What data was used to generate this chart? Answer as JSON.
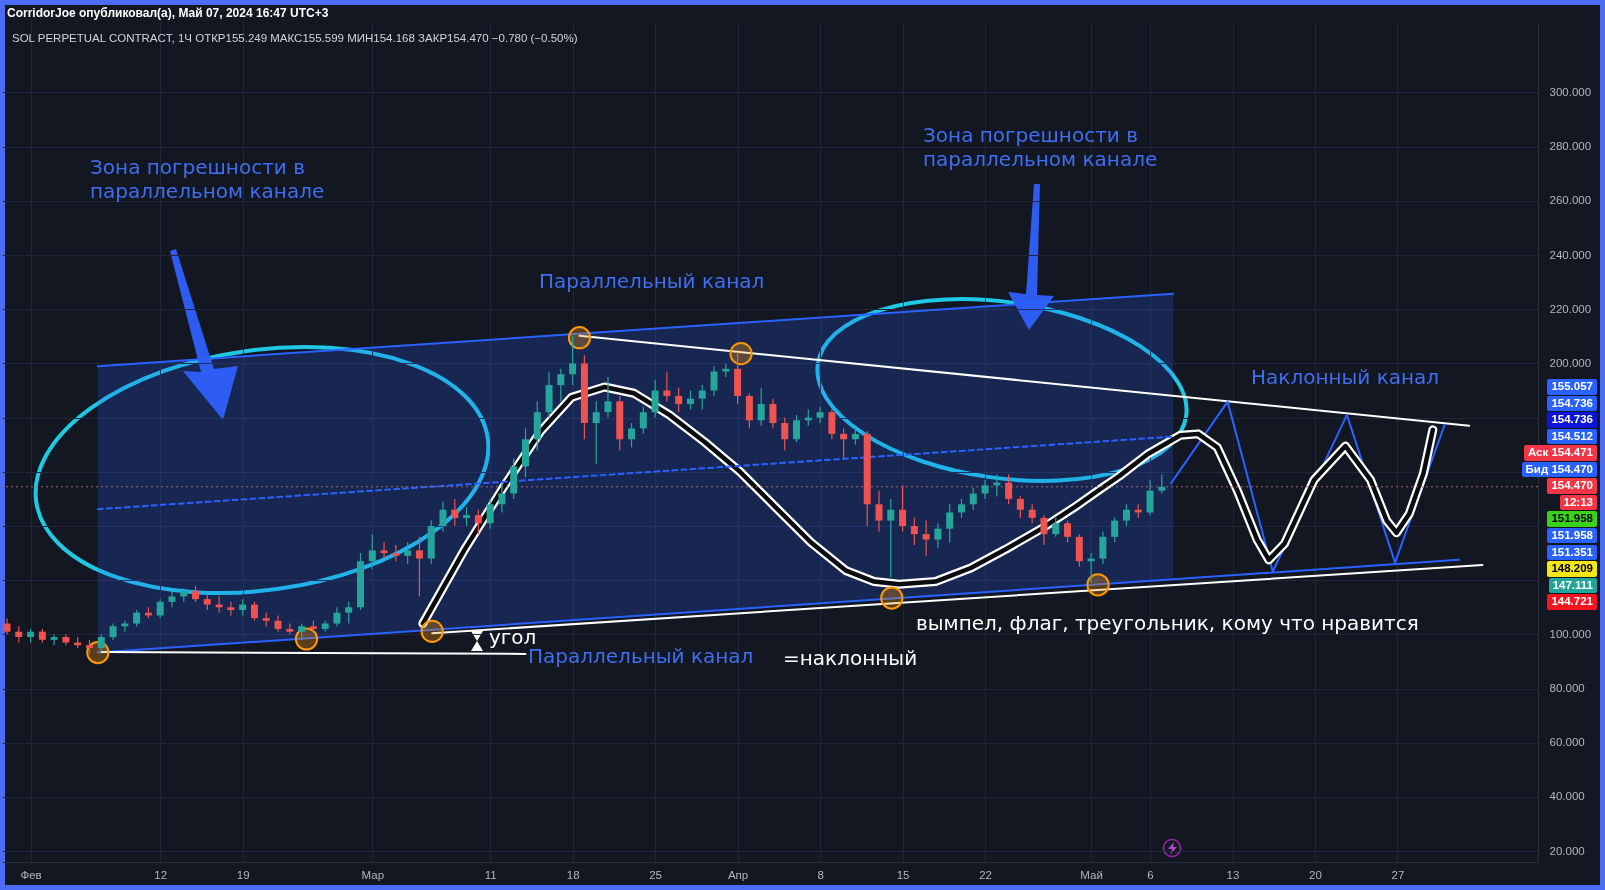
{
  "chart_data": {
    "type": "candlestick",
    "title": "SOL PERPETUAL CONTRACT, 1Ч ОТКР155.249 МАКС155.599 МИН154.168 ЗАКР154.470 −0.780 (−0.50%)",
    "subtitle": "CorridorJoe опубликовал(а), Май 07, 2024 16:47 UTC+3",
    "x": [
      "2024-01-30",
      "2024-01-31",
      "2024-02-01",
      "2024-02-02",
      "2024-02-03",
      "2024-02-04",
      "2024-02-05",
      "2024-02-06",
      "2024-02-07",
      "2024-02-08",
      "2024-02-09",
      "2024-02-10",
      "2024-02-11",
      "2024-02-12",
      "2024-02-13",
      "2024-02-14",
      "2024-02-15",
      "2024-02-16",
      "2024-02-17",
      "2024-02-18",
      "2024-02-19",
      "2024-02-20",
      "2024-02-21",
      "2024-02-22",
      "2024-02-23",
      "2024-02-24",
      "2024-02-25",
      "2024-02-26",
      "2024-02-27",
      "2024-02-28",
      "2024-02-29",
      "2024-03-01",
      "2024-03-02",
      "2024-03-03",
      "2024-03-04",
      "2024-03-05",
      "2024-03-06",
      "2024-03-07",
      "2024-03-08",
      "2024-03-09",
      "2024-03-10",
      "2024-03-11",
      "2024-03-12",
      "2024-03-13",
      "2024-03-14",
      "2024-03-15",
      "2024-03-16",
      "2024-03-17",
      "2024-03-18",
      "2024-03-19",
      "2024-03-20",
      "2024-03-21",
      "2024-03-22",
      "2024-03-23",
      "2024-03-24",
      "2024-03-25",
      "2024-03-26",
      "2024-03-27",
      "2024-03-28",
      "2024-03-29",
      "2024-03-30",
      "2024-03-31",
      "2024-04-01",
      "2024-04-02",
      "2024-04-03",
      "2024-04-04",
      "2024-04-05",
      "2024-04-06",
      "2024-04-07",
      "2024-04-08",
      "2024-04-09",
      "2024-04-10",
      "2024-04-11",
      "2024-04-12",
      "2024-04-13",
      "2024-04-14",
      "2024-04-15",
      "2024-04-16",
      "2024-04-17",
      "2024-04-18",
      "2024-04-19",
      "2024-04-20",
      "2024-04-21",
      "2024-04-22",
      "2024-04-23",
      "2024-04-24",
      "2024-04-25",
      "2024-04-26",
      "2024-04-27",
      "2024-04-28",
      "2024-04-29",
      "2024-04-30",
      "2024-05-01",
      "2024-05-02",
      "2024-05-03",
      "2024-05-04",
      "2024-05-05",
      "2024-05-06",
      "2024-05-07"
    ],
    "ohlc": [
      [
        104,
        106,
        100,
        101
      ],
      [
        101,
        103,
        97,
        99
      ],
      [
        99,
        102,
        97,
        101
      ],
      [
        101,
        102,
        97,
        98
      ],
      [
        98,
        100,
        96,
        99
      ],
      [
        99,
        100,
        96,
        97
      ],
      [
        97,
        99,
        95,
        96
      ],
      [
        96,
        98,
        93,
        95
      ],
      [
        95,
        100,
        94,
        99
      ],
      [
        99,
        104,
        98,
        103
      ],
      [
        103,
        105,
        101,
        104
      ],
      [
        104,
        109,
        103,
        108
      ],
      [
        108,
        110,
        106,
        107
      ],
      [
        107,
        113,
        106,
        112
      ],
      [
        112,
        116,
        110,
        114
      ],
      [
        114,
        117,
        112,
        116
      ],
      [
        116,
        118,
        112,
        113
      ],
      [
        113,
        115,
        109,
        111
      ],
      [
        111,
        114,
        108,
        110
      ],
      [
        110,
        112,
        107,
        109
      ],
      [
        109,
        113,
        107,
        111
      ],
      [
        111,
        112,
        105,
        106
      ],
      [
        106,
        108,
        103,
        105
      ],
      [
        105,
        107,
        101,
        102
      ],
      [
        102,
        104,
        100,
        101
      ],
      [
        101,
        104,
        98,
        103
      ],
      [
        103,
        105,
        101,
        102
      ],
      [
        102,
        105,
        101,
        104
      ],
      [
        104,
        110,
        103,
        108
      ],
      [
        108,
        112,
        104,
        110
      ],
      [
        110,
        130,
        109,
        127
      ],
      [
        127,
        137,
        124,
        131
      ],
      [
        131,
        134,
        128,
        130
      ],
      [
        130,
        133,
        127,
        129
      ],
      [
        129,
        134,
        126,
        131
      ],
      [
        131,
        136,
        114,
        128
      ],
      [
        128,
        142,
        126,
        140
      ],
      [
        140,
        149,
        138,
        146
      ],
      [
        146,
        150,
        140,
        143
      ],
      [
        143,
        147,
        140,
        144
      ],
      [
        144,
        146,
        137,
        141
      ],
      [
        141,
        150,
        139,
        148
      ],
      [
        148,
        156,
        145,
        152
      ],
      [
        152,
        165,
        150,
        162
      ],
      [
        162,
        176,
        158,
        172
      ],
      [
        172,
        186,
        168,
        182
      ],
      [
        182,
        197,
        180,
        192
      ],
      [
        192,
        198,
        186,
        196
      ],
      [
        196,
        210,
        192,
        200
      ],
      [
        200,
        203,
        172,
        178
      ],
      [
        178,
        186,
        163,
        182
      ],
      [
        182,
        195,
        180,
        186
      ],
      [
        186,
        188,
        168,
        172
      ],
      [
        172,
        178,
        169,
        176
      ],
      [
        176,
        184,
        174,
        182
      ],
      [
        182,
        194,
        180,
        190
      ],
      [
        190,
        197,
        186,
        188
      ],
      [
        188,
        191,
        182,
        185
      ],
      [
        185,
        190,
        183,
        187
      ],
      [
        187,
        192,
        183,
        190
      ],
      [
        190,
        199,
        188,
        197
      ],
      [
        197,
        200,
        195,
        198
      ],
      [
        198,
        204,
        185,
        188
      ],
      [
        188,
        189,
        176,
        179
      ],
      [
        179,
        191,
        177,
        185
      ],
      [
        185,
        187,
        176,
        178
      ],
      [
        178,
        180,
        168,
        172
      ],
      [
        172,
        181,
        171,
        179
      ],
      [
        179,
        183,
        177,
        180
      ],
      [
        180,
        184,
        178,
        182
      ],
      [
        182,
        183,
        172,
        174
      ],
      [
        174,
        176,
        165,
        172
      ],
      [
        172,
        176,
        170,
        174
      ],
      [
        174,
        175,
        140,
        148
      ],
      [
        148,
        153,
        138,
        142
      ],
      [
        142,
        150,
        121,
        146
      ],
      [
        146,
        155,
        138,
        140
      ],
      [
        140,
        143,
        133,
        137
      ],
      [
        137,
        142,
        129,
        135
      ],
      [
        135,
        141,
        132,
        139
      ],
      [
        139,
        148,
        134,
        145
      ],
      [
        145,
        150,
        143,
        148
      ],
      [
        148,
        154,
        146,
        152
      ],
      [
        152,
        157,
        150,
        155
      ],
      [
        155,
        159,
        151,
        156
      ],
      [
        156,
        159,
        148,
        150
      ],
      [
        150,
        151,
        143,
        146
      ],
      [
        146,
        148,
        141,
        143
      ],
      [
        143,
        144,
        133,
        137
      ],
      [
        137,
        143,
        136,
        141
      ],
      [
        141,
        142,
        134,
        136
      ],
      [
        136,
        137,
        125,
        127
      ],
      [
        127,
        130,
        119,
        128
      ],
      [
        128,
        138,
        126,
        136
      ],
      [
        136,
        143,
        134,
        142
      ],
      [
        142,
        148,
        140,
        146
      ],
      [
        146,
        148,
        143,
        145
      ],
      [
        145,
        157,
        144,
        153
      ],
      [
        153,
        159,
        152,
        154.47
      ]
    ],
    "colors": [
      "#ef5350",
      "#ef5350",
      "#26a69a",
      "#ef5350",
      "#26a69a",
      "#ef5350",
      "#ef5350",
      "#ef5350",
      "#26a69a",
      "#26a69a",
      "#26a69a",
      "#26a69a",
      "#ef5350",
      "#26a69a",
      "#26a69a",
      "#26a69a",
      "#ef5350",
      "#ef5350",
      "#ef5350",
      "#ef5350",
      "#26a69a",
      "#ef5350",
      "#ef5350",
      "#ef5350",
      "#ef5350",
      "#26a69a",
      "#ef5350",
      "#26a69a",
      "#26a69a",
      "#26a69a",
      "#26a69a",
      "#26a69a",
      "#ef5350",
      "#ef5350",
      "#26a69a",
      "#ef5350",
      "#26a69a",
      "#26a69a",
      "#ef5350",
      "#26a69a",
      "#ef5350",
      "#26a69a",
      "#26a69a",
      "#26a69a",
      "#26a69a",
      "#26a69a",
      "#26a69a",
      "#26a69a",
      "#26a69a",
      "#ef5350",
      "#26a69a",
      "#26a69a",
      "#ef5350",
      "#26a69a",
      "#26a69a",
      "#26a69a",
      "#ef5350",
      "#ef5350",
      "#26a69a",
      "#26a69a",
      "#26a69a",
      "#26a69a",
      "#ef5350",
      "#ef5350",
      "#26a69a",
      "#ef5350",
      "#ef5350",
      "#26a69a",
      "#26a69a",
      "#26a69a",
      "#ef5350",
      "#ef5350",
      "#26a69a",
      "#ef5350",
      "#ef5350",
      "#26a69a",
      "#ef5350",
      "#ef5350",
      "#ef5350",
      "#26a69a",
      "#26a69a",
      "#26a69a",
      "#26a69a",
      "#26a69a",
      "#26a69a",
      "#ef5350",
      "#ef5350",
      "#ef5350",
      "#ef5350",
      "#26a69a",
      "#ef5350",
      "#ef5350",
      "#26a69a",
      "#26a69a",
      "#26a69a",
      "#26a69a",
      "#ef5350",
      "#26a69a",
      "#26a69a"
    ],
    "xlim": [
      "2024-01-30T00:00",
      "2024-06-07T12:00"
    ],
    "xticks": [
      {
        "value": "2024-02-01",
        "label": "Фев"
      },
      {
        "value": "2024-02-12",
        "label": "12"
      },
      {
        "value": "2024-02-19",
        "label": "19"
      },
      {
        "value": "2024-03-01",
        "label": "Мар"
      },
      {
        "value": "2024-03-11",
        "label": "11"
      },
      {
        "value": "2024-03-18",
        "label": "18"
      },
      {
        "value": "2024-03-25",
        "label": "25"
      },
      {
        "value": "2024-04-01",
        "label": "Апр"
      },
      {
        "value": "2024-04-08",
        "label": "8"
      },
      {
        "value": "2024-04-15",
        "label": "15"
      },
      {
        "value": "2024-04-22",
        "label": "22"
      },
      {
        "value": "2024-05-01",
        "label": "Май"
      },
      {
        "value": "2024-05-06",
        "label": "6"
      },
      {
        "value": "2024-05-13",
        "label": "13"
      },
      {
        "value": "2024-05-20",
        "label": "20"
      },
      {
        "value": "2024-05-27",
        "label": "27"
      }
    ],
    "ylim": [
      16,
      326
    ],
    "yticks": [
      {
        "value": 20,
        "label": "20.000"
      },
      {
        "value": 40,
        "label": "40.000"
      },
      {
        "value": 60,
        "label": "60.000"
      },
      {
        "value": 80,
        "label": "80.000"
      },
      {
        "value": 100,
        "label": "100.000"
      },
      {
        "value": 120,
        "label": null
      },
      {
        "value": 140,
        "label": null
      },
      {
        "value": 160,
        "label": null
      },
      {
        "value": 180,
        "label": null
      },
      {
        "value": 200,
        "label": "200.000"
      },
      {
        "value": 220,
        "label": "220.000"
      },
      {
        "value": 240,
        "label": "240.000"
      },
      {
        "value": 260,
        "label": "260.000"
      },
      {
        "value": 280,
        "label": "280.000"
      },
      {
        "value": 300,
        "label": "300.000"
      }
    ],
    "grid": true,
    "series": [
      {
        "type": "line",
        "color": "#2962ff",
        "x": [
          "2024-02-06T17:00",
          "2024-05-07T23:00"
        ],
        "values": [
          199.0,
          225.7
        ]
      },
      {
        "type": "line",
        "color": "#2962ff",
        "x": [
          "2024-02-06T17:00",
          "2024-06-01T05:00"
        ],
        "values": [
          93.3,
          127.5
        ]
      },
      {
        "type": "line",
        "color": "#ffffff",
        "x": [
          "2024-03-18T14:00",
          "2024-06-02T02:00"
        ],
        "values": [
          210.2,
          177.0
        ]
      },
      {
        "type": "line",
        "color": "#ffffff",
        "x": [
          "2024-02-07T01:00",
          "2024-03-14T00:00"
        ],
        "values": [
          93.5,
          92.8
        ]
      },
      {
        "type": "line",
        "color": "#ffffff",
        "x": [
          "2024-03-06T02:00",
          "2024-06-03T05:00"
        ],
        "values": [
          100.4,
          125.6
        ]
      },
      {
        "type": "line",
        "color": "#2962ff",
        "x": [
          "2024-05-07T19:00",
          "2024-05-12T14:00",
          "2024-05-16T10:00",
          "2024-05-22T17:00",
          "2024-05-26T19:00",
          "2024-05-31T00:00"
        ],
        "values": [
          155.8,
          185.9,
          123.2,
          181.0,
          126.5,
          177.3
        ]
      },
      {
        "type": "line",
        "color": "#ffffff",
        "x": [
          "2024-03-05T07:00",
          "2024-03-08T19:00",
          "2024-03-12T02:00",
          "2024-03-15T07:00",
          "2024-03-17T22:00",
          "2024-03-20T17:00",
          "2024-03-23T05:00",
          "2024-03-26T05:00",
          "2024-03-29T05:00",
          "2024-04-01T05:00",
          "2024-04-04T05:00",
          "2024-04-07T05:00",
          "2024-04-10T05:00",
          "2024-04-12T14:00",
          "2024-04-14T17:00",
          "2024-04-17T19:00",
          "2024-04-20T19:00",
          "2024-04-23T19:00",
          "2024-04-26T19:00",
          "2024-04-29T19:00",
          "2024-05-01T14:00",
          "2024-05-03T10:00",
          "2024-05-05T19:00",
          "2024-05-08T14:00",
          "2024-05-10T02:00",
          "2024-05-11T17:00",
          "2024-05-13T10:00",
          "2024-05-15T02:00",
          "2024-05-16T02:00",
          "2024-05-17T10:00",
          "2024-05-19T22:00",
          "2024-05-22T14:00",
          "2024-05-24T17:00",
          "2024-05-26T02:00",
          "2024-05-26T22:00",
          "2024-05-28T00:00",
          "2024-05-29T05:00",
          "2024-05-30T00:00"
        ],
        "values": [
          104,
          131,
          154,
          175,
          187.5,
          191.3,
          189,
          181,
          171,
          160,
          147,
          134,
          123.5,
          119.5,
          118.5,
          119.5,
          124.5,
          131.5,
          139,
          147.5,
          153,
          158.5,
          166.5,
          173.5,
          174,
          169,
          153,
          135,
          127.5,
          133.5,
          157,
          169.5,
          157,
          142,
          137.5,
          144.5,
          159.5,
          175.5
        ]
      },
      {
        "type": "line",
        "color": "#2962ff",
        "line_style": "dashed",
        "x": [
          "2024-02-06T17:00",
          "2024-05-07T23:00"
        ],
        "values": [
          146.2,
          173.0
        ],
        "lower": [
          93.3,
          120.3
        ],
        "upper": [
          199.0,
          225.7
        ]
      },
      {
        "type": "scatter",
        "color": "#ff9800",
        "marker": "circle",
        "x": [
          "2024-02-06T17:00",
          "2024-02-24T10:00",
          "2024-03-06T02:00",
          "2024-03-18T14:00",
          "2024-04-01T07:00",
          "2024-04-14T02:00",
          "2024-05-01T14:00"
        ],
        "values": [
          93.3,
          98.3,
          101.1,
          209.5,
          203.6,
          113.4,
          118.3
        ]
      }
    ],
    "ref_lines": [
      {
        "axis": "y",
        "value": 154.47,
        "color": "#a0686e",
        "line_style": "dotted"
      }
    ],
    "annotations": [
      "Зона погрешности в\nпараллельном канале",
      "Зона погрешности в\nпараллельном канале",
      "Параллельный канал",
      "Параллельный канал",
      "Наклонный канал",
      "вымпел, флаг, треугольник, кому что нравится",
      "угол",
      "=наклонный",
      "155.057",
      "154.736",
      "154.736",
      "154.512",
      "Аск 154.471",
      "Бид 154.470",
      "154.470",
      "12:13",
      "151.958",
      "151.958",
      "151.351",
      "148.209",
      "147.111",
      "144.721"
    ]
  }
}
